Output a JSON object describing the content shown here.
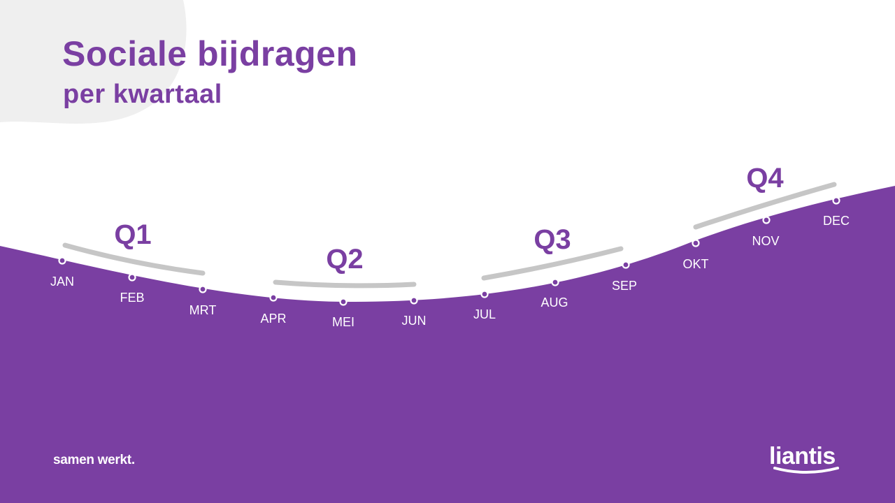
{
  "slide": {
    "title": "Sociale bijdragen",
    "subtitle": "per kwartaal",
    "tagline": "samen werkt.",
    "logo_text": "liantis"
  },
  "colors": {
    "brand_purple": "#7a3fa2",
    "bracket_gray": "#c6c6c6",
    "blob_gray": "#efefef",
    "text_white": "#ffffff"
  },
  "quarters": [
    {
      "label": "Q1",
      "months": [
        "JAN",
        "FEB",
        "MRT"
      ]
    },
    {
      "label": "Q2",
      "months": [
        "APR",
        "MEI",
        "JUN"
      ]
    },
    {
      "label": "Q3",
      "months": [
        "JUL",
        "AUG",
        "SEP"
      ]
    },
    {
      "label": "Q4",
      "months": [
        "OKT",
        "NOV",
        "DEC"
      ]
    }
  ]
}
